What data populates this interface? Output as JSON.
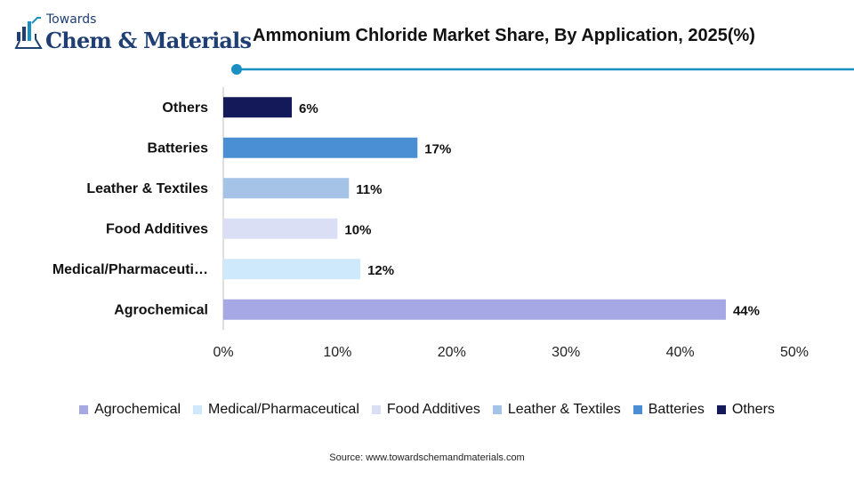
{
  "logo": {
    "top_text": "Towards",
    "main_text": "Chem & Materials",
    "icon": "flask-icon",
    "color": "#1f3f73"
  },
  "title": "Ammonium Chloride Market Share, By Application, 2025(%)",
  "accent_color": "#1a8fc4",
  "chart_data": {
    "type": "bar",
    "orientation": "horizontal",
    "title": "Ammonium Chloride Market Share, By Application, 2025(%)",
    "categories": [
      "Others",
      "Batteries",
      "Leather & Textiles",
      "Food Additives",
      "Medical/Pharmaceutical",
      "Agrochemical"
    ],
    "category_display": [
      "Others",
      "Batteries",
      "Leather & Textiles",
      "Food Additives",
      "Medical/Pharmaceuti…",
      "Agrochemical"
    ],
    "values": [
      6,
      17,
      11,
      10,
      12,
      44
    ],
    "value_labels": [
      "6%",
      "17%",
      "11%",
      "10%",
      "12%",
      "44%"
    ],
    "colors": [
      "#14195a",
      "#4a8fd4",
      "#a4c3e6",
      "#dadff5",
      "#cde9fb",
      "#a6a8e6"
    ],
    "xlim": [
      0,
      50
    ],
    "x_ticks": [
      0,
      10,
      20,
      30,
      40,
      50
    ],
    "x_tick_labels": [
      "0%",
      "10%",
      "20%",
      "30%",
      "40%",
      "50%"
    ],
    "xlabel": "",
    "ylabel": "",
    "grid": false,
    "legend_position": "bottom",
    "legend": [
      {
        "label": "Agrochemical",
        "color": "#a6a8e6"
      },
      {
        "label": "Medical/Pharmaceutical",
        "color": "#cde9fb"
      },
      {
        "label": "Food Additives",
        "color": "#dadff5"
      },
      {
        "label": "Leather & Textiles",
        "color": "#a4c3e6"
      },
      {
        "label": "Batteries",
        "color": "#4a8fd4"
      },
      {
        "label": "Others",
        "color": "#14195a"
      }
    ]
  },
  "source": "Source: www.towardschemandmaterials.com"
}
